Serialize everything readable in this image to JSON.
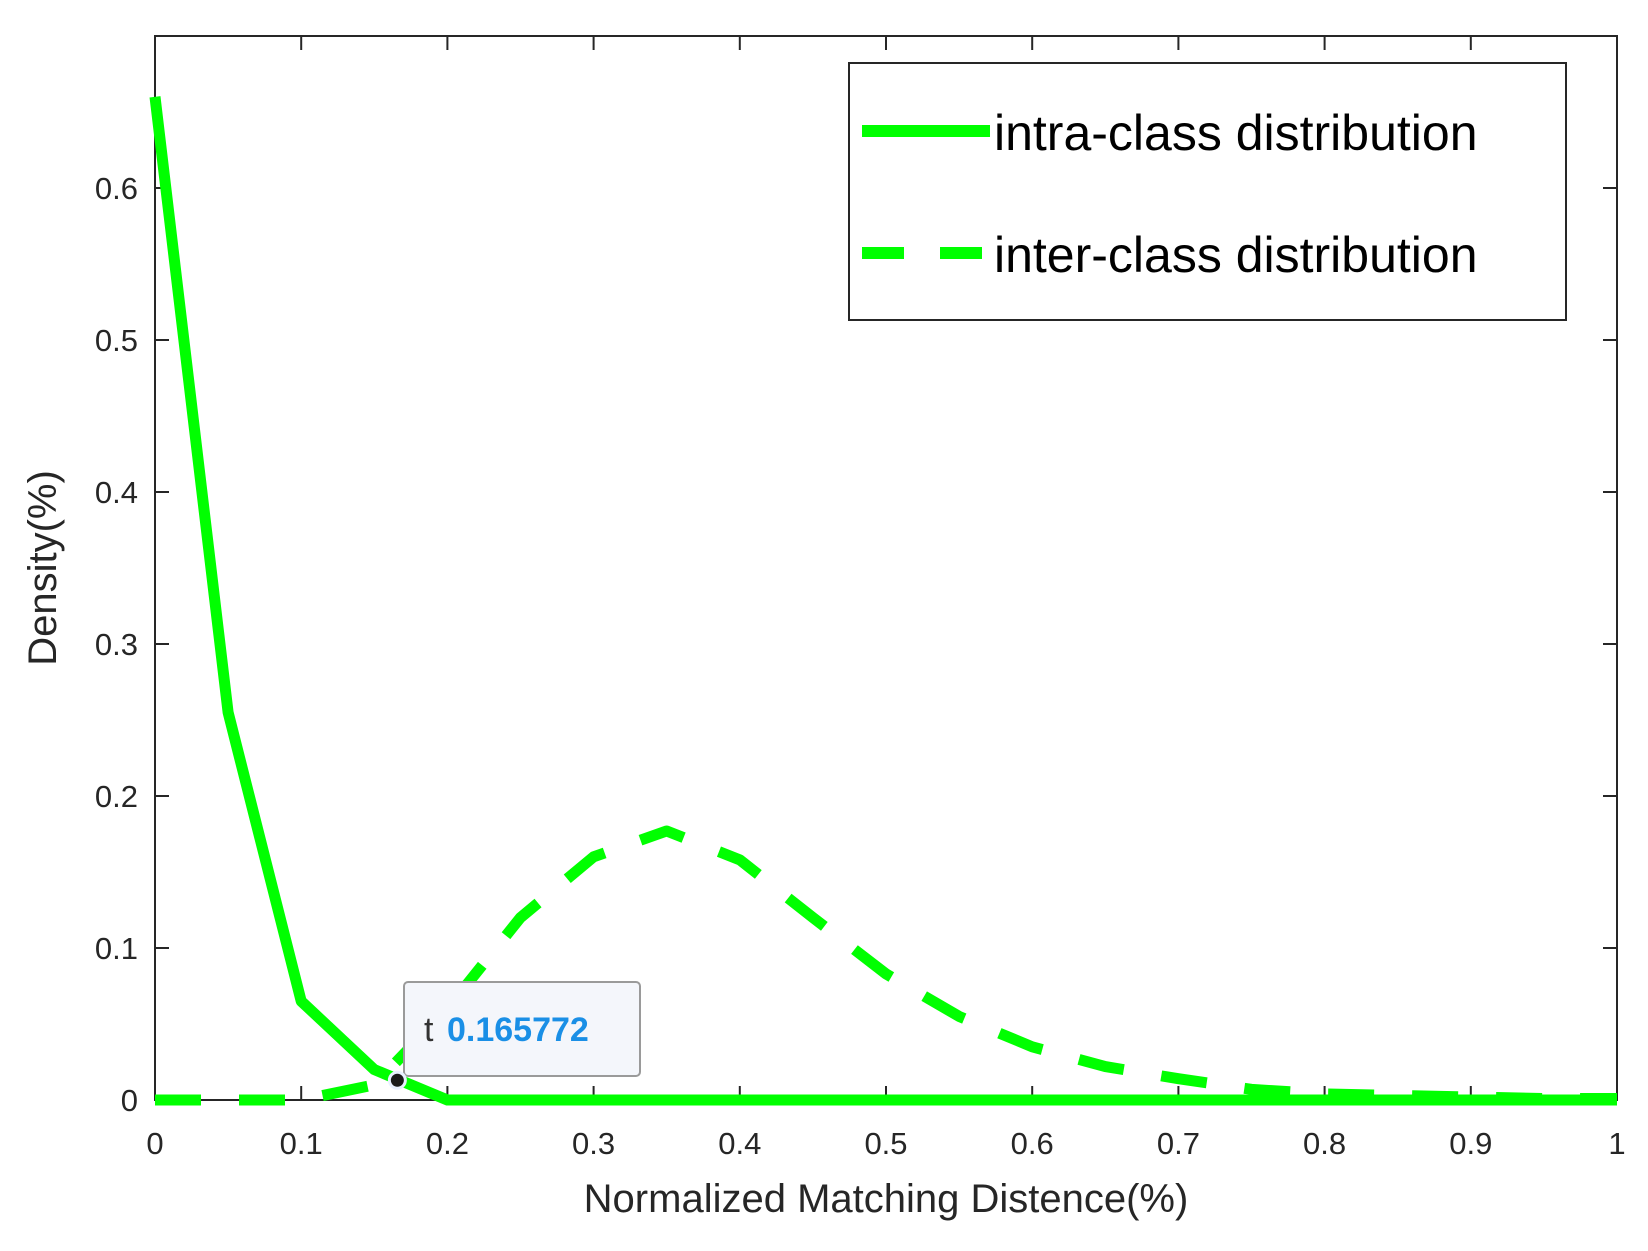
{
  "chart_data": {
    "type": "line",
    "title": "",
    "xlabel": "Normalized Matching Distence(%)",
    "ylabel": "Density(%)",
    "xlim": [
      0,
      1
    ],
    "ylim": [
      0,
      0.66
    ],
    "x_ticks": [
      "0",
      "0.1",
      "0.2",
      "0.3",
      "0.4",
      "0.5",
      "0.6",
      "0.7",
      "0.8",
      "0.9",
      "1"
    ],
    "y_ticks": [
      "0",
      "0.1",
      "0.2",
      "0.3",
      "0.4",
      "0.5",
      "0.6"
    ],
    "grid": false,
    "legend_position": "top-right",
    "series": [
      {
        "name": "intra-class distribution",
        "style": "solid",
        "color": "#00ff00",
        "x": [
          0,
          0.05,
          0.1,
          0.15,
          0.2,
          0.25,
          0.3,
          0.35,
          0.4,
          0.45,
          0.5,
          0.55,
          0.6,
          0.65,
          0.7,
          0.75,
          0.8,
          0.85,
          0.9,
          0.95,
          1
        ],
        "y": [
          0.66,
          0.255,
          0.065,
          0.02,
          0,
          0,
          0,
          0,
          0,
          0,
          0,
          0,
          0,
          0,
          0,
          0,
          0,
          0,
          0,
          0,
          0
        ]
      },
      {
        "name": "inter-class distribution",
        "style": "dashed",
        "color": "#00ff00",
        "x": [
          0,
          0.05,
          0.1,
          0.15,
          0.2,
          0.25,
          0.3,
          0.35,
          0.4,
          0.45,
          0.5,
          0.55,
          0.6,
          0.65,
          0.7,
          0.75,
          0.8,
          0.85,
          0.9,
          0.95,
          1
        ],
        "y": [
          0,
          0,
          0,
          0.01,
          0.06,
          0.12,
          0.16,
          0.177,
          0.158,
          0.12,
          0.083,
          0.055,
          0.035,
          0.022,
          0.014,
          0.007,
          0.004,
          0.003,
          0.002,
          0.001,
          0.001
        ]
      }
    ],
    "annotation": {
      "label": "t",
      "value": "0.165772",
      "point": {
        "x": 0.165772,
        "y": 0.013
      }
    }
  }
}
